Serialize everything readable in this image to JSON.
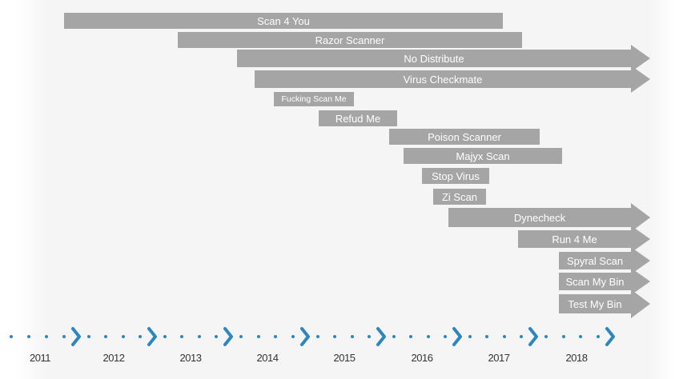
{
  "colors": {
    "bar": "#a5a5a5",
    "bar_text": "#ffffff",
    "timeline_accent": "#2e86c1",
    "year_text": "#333333"
  },
  "timeline": {
    "years": [
      "2011",
      "2012",
      "2013",
      "2014",
      "2015",
      "2016",
      "2017",
      "2018"
    ]
  },
  "services": [
    {
      "name": "Scan 4 You",
      "ongoing": false
    },
    {
      "name": "Razor Scanner",
      "ongoing": false
    },
    {
      "name": "No Distribute",
      "ongoing": true
    },
    {
      "name": "Virus Checkmate",
      "ongoing": true
    },
    {
      "name": "Fucking Scan Me",
      "ongoing": false
    },
    {
      "name": "Refud Me",
      "ongoing": false
    },
    {
      "name": "Poison Scanner",
      "ongoing": false
    },
    {
      "name": "Majyx Scan",
      "ongoing": false
    },
    {
      "name": "Stop Virus",
      "ongoing": false
    },
    {
      "name": "Zi Scan",
      "ongoing": false
    },
    {
      "name": "Dynecheck",
      "ongoing": true
    },
    {
      "name": "Run 4 Me",
      "ongoing": true
    },
    {
      "name": "Spyral Scan",
      "ongoing": true
    },
    {
      "name": "Scan My Bin",
      "ongoing": true
    },
    {
      "name": "Test My Bin",
      "ongoing": true
    }
  ]
}
